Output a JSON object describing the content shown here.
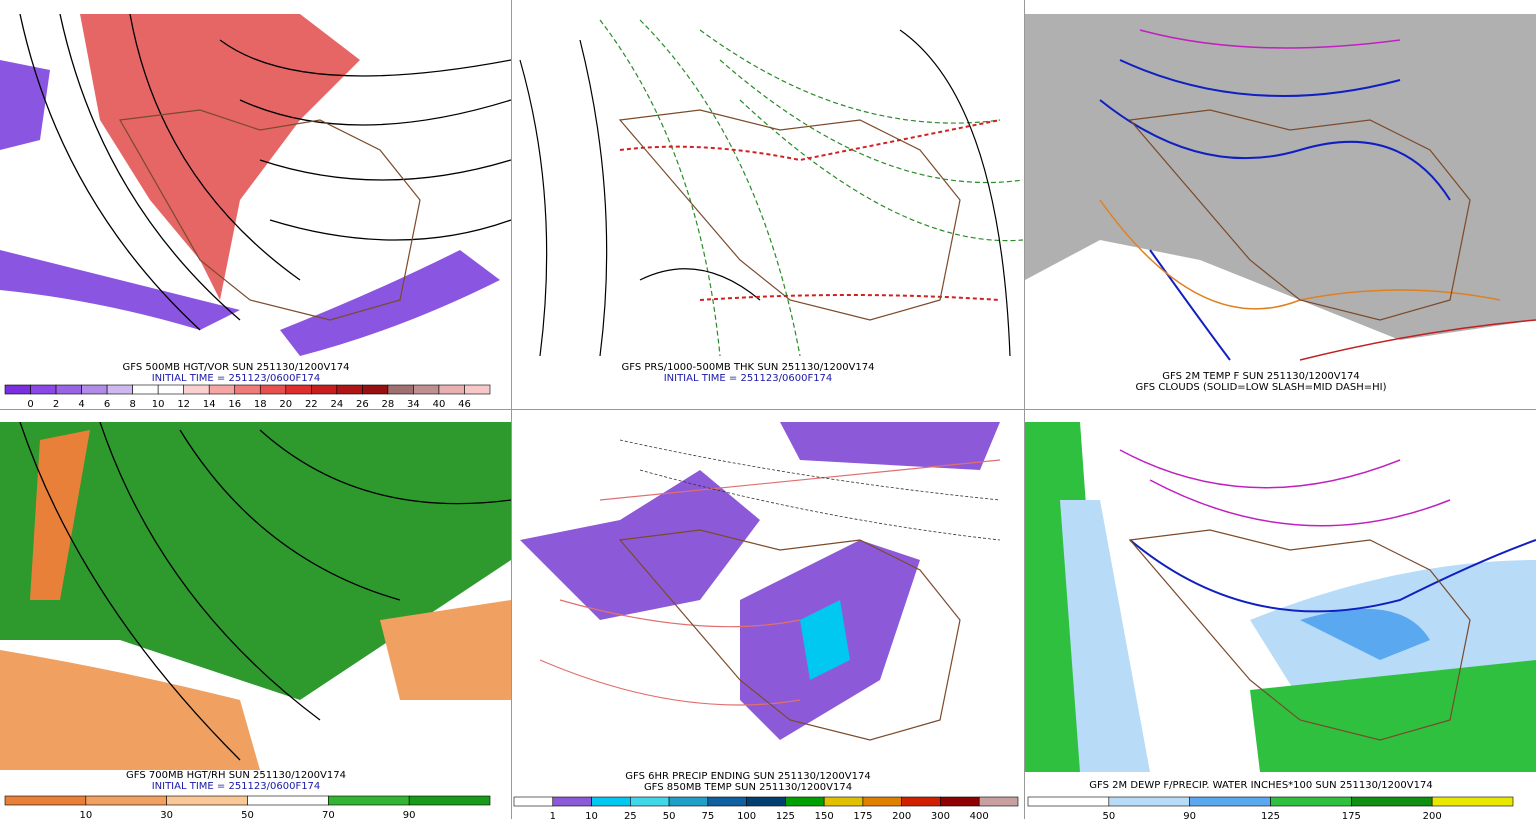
{
  "panels": [
    {
      "caption": [
        {
          "text": "GFS 500MB HGT/VOR SUN 251130/1200V174",
          "color": "#000000"
        },
        {
          "text": "INITIAL TIME = 251123/0600F174",
          "color": "#1a1aa8"
        }
      ],
      "colorbar": {
        "labels": [
          "0",
          "2",
          "4",
          "6",
          "8",
          "10",
          "12",
          "14",
          "16",
          "18",
          "20",
          "22",
          "24",
          "26",
          "28",
          "34",
          "40",
          "46"
        ],
        "colors": [
          "#7b2fe0",
          "#8a48e8",
          "#9a64e6",
          "#b08be8",
          "#cdb8f0",
          "#ffffff",
          "#ffffff",
          "#fbd0d0",
          "#f6a5a5",
          "#f07a7a",
          "#e85050",
          "#de2e2e",
          "#c81e1e",
          "#b01515",
          "#981010",
          "#a07070",
          "#c09090",
          "#e8b0b0",
          "#f8c8c8"
        ]
      }
    },
    {
      "caption": [
        {
          "text": "GFS PRS/1000-500MB THK SUN 251130/1200V174",
          "color": "#000000"
        },
        {
          "text": "INITIAL TIME = 251123/0600F174",
          "color": "#1a1aa8"
        }
      ]
    },
    {
      "caption": [
        {
          "text": "GFS 2M TEMP F SUN 251130/1200V174",
          "color": "#000000"
        },
        {
          "text": "GFS CLOUDS (SOLID=LOW SLASH=MID DASH=HI)",
          "color": "#000000"
        }
      ]
    },
    {
      "caption": [
        {
          "text": "GFS 700MB HGT/RH SUN 251130/1200V174",
          "color": "#000000"
        },
        {
          "text": "INITIAL TIME = 251123/0600F174",
          "color": "#1a1aa8"
        }
      ],
      "colorbar": {
        "labels": [
          "10",
          "30",
          "50",
          "70",
          "90"
        ],
        "colors": [
          "#e8803a",
          "#f0a060",
          "#f8c898",
          "#ffffff",
          "#33b533",
          "#1a9a1a"
        ]
      }
    },
    {
      "caption": [
        {
          "text": "GFS 6HR PRECIP ENDING SUN 251130/1200V174",
          "color": "#000000"
        },
        {
          "text": "GFS 850MB TEMP SUN 251130/1200V174",
          "color": "#000000"
        }
      ],
      "colorbar": {
        "labels": [
          "1",
          "10",
          "25",
          "50",
          "75",
          "100",
          "125",
          "150",
          "175",
          "200",
          "300",
          "400"
        ],
        "colors": [
          "#ffffff",
          "#8c5ad8",
          "#00c8f0",
          "#40d8e8",
          "#20a0c8",
          "#1060a0",
          "#004070",
          "#00a000",
          "#e0c000",
          "#e08000",
          "#d02000",
          "#900000",
          "#c8a0a0"
        ]
      }
    },
    {
      "caption": [
        {
          "text": "GFS 2M DEWP F/PRECIP. WATER INCHES*100 SUN 251130/1200V174",
          "color": "#000000"
        }
      ],
      "colorbar": {
        "labels": [
          "50",
          "90",
          "125",
          "175",
          "200"
        ],
        "colors": [
          "#ffffff",
          "#b8dcf8",
          "#5aa8f0",
          "#30c040",
          "#109010",
          "#e8e800"
        ]
      }
    }
  ]
}
